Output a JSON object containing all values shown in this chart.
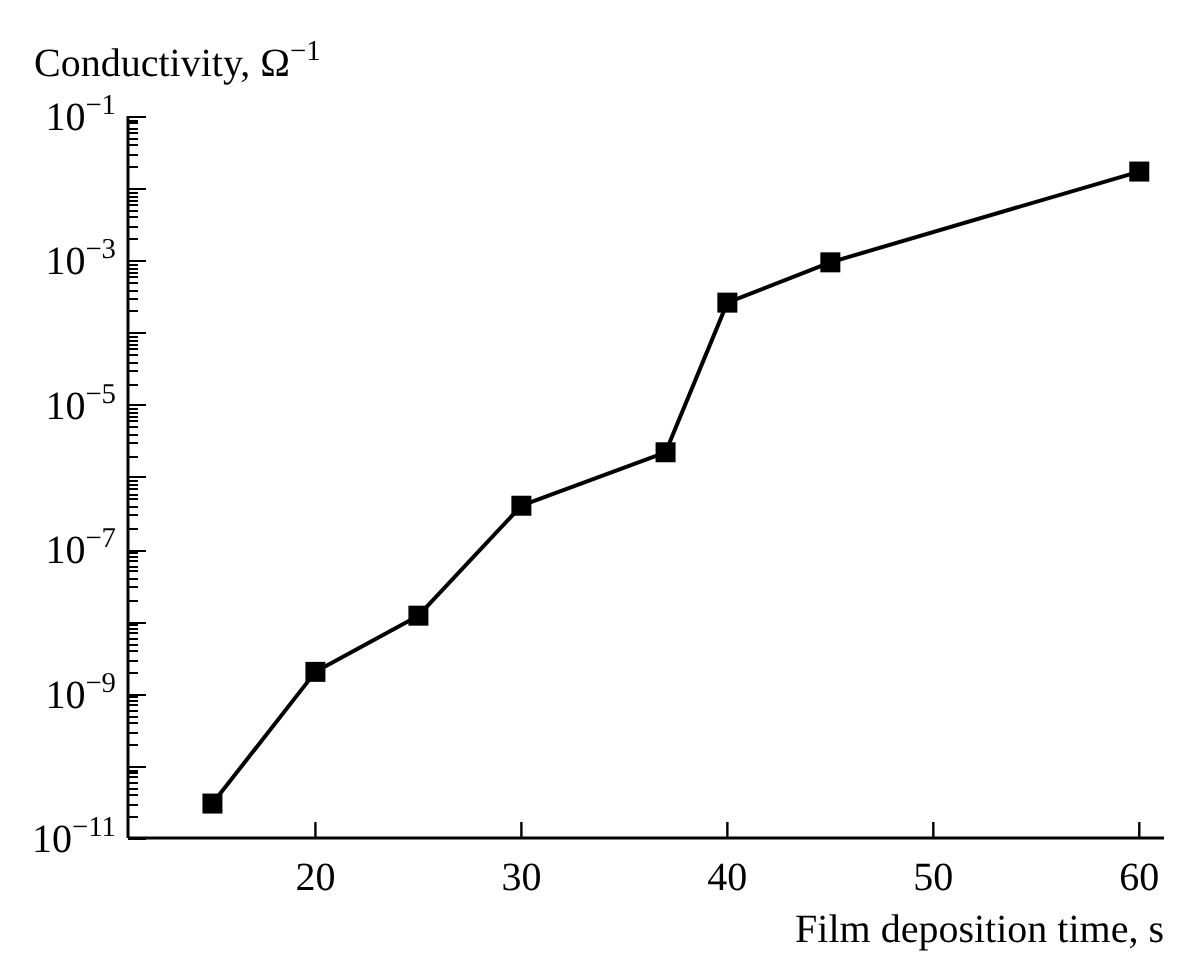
{
  "chart_data": {
    "type": "line",
    "xlabel": "Film deposition time, s",
    "ylabel": "Conductivity, Ω$^{−1}$",
    "x": [
      15,
      20,
      25,
      30,
      37,
      40,
      45,
      60
    ],
    "series": [
      {
        "color": "#000000",
        "values": [
          3e-11,
          2e-09,
          1.2e-08,
          4e-07,
          2.2e-06,
          0.00026,
          0.00094,
          0.017
        ]
      }
    ],
    "marker": "square",
    "line_style": "solid",
    "log": "y",
    "grid": false,
    "xlim": [
      10.9,
      61.2
    ],
    "xticks": [
      20,
      30,
      40,
      50,
      60
    ],
    "ylim": [
      1e-11,
      0.1
    ],
    "yticks": [
      {
        "value": 1e-11,
        "label": "10$^{−11}$"
      },
      {
        "value": 1e-10,
        "label": null
      },
      {
        "value": 1e-09,
        "label": "10$^{−9}$"
      },
      {
        "value": 1e-08,
        "label": null
      },
      {
        "value": 1e-07,
        "label": "10$^{−7}$"
      },
      {
        "value": 1e-06,
        "label": null
      },
      {
        "value": 1e-05,
        "label": "10$^{−5}$"
      },
      {
        "value": 0.0001,
        "label": null
      },
      {
        "value": 0.001,
        "label": "10$^{−3}$"
      },
      {
        "value": 0.01,
        "label": null
      },
      {
        "value": 0.1,
        "label": "10$^{−1}$"
      },
      {
        "value": 2e-11,
        "label": null
      },
      {
        "value": 3e-11,
        "label": null
      },
      {
        "value": 4e-11,
        "label": null
      },
      {
        "value": 5e-11,
        "label": null
      },
      {
        "value": 6e-11,
        "label": null
      },
      {
        "value": 7e-11,
        "label": null
      },
      {
        "value": 8e-11,
        "label": null
      },
      {
        "value": 9e-11,
        "label": null
      },
      {
        "value": 2e-10,
        "label": null
      },
      {
        "value": 3e-10,
        "label": null
      },
      {
        "value": 4e-10,
        "label": null
      },
      {
        "value": 5e-10,
        "label": null
      },
      {
        "value": 6e-10,
        "label": null
      },
      {
        "value": 7e-10,
        "label": null
      },
      {
        "value": 8e-10,
        "label": null
      },
      {
        "value": 9e-10,
        "label": null
      },
      {
        "value": 2e-09,
        "label": null
      },
      {
        "value": 3e-09,
        "label": null
      },
      {
        "value": 4e-09,
        "label": null
      },
      {
        "value": 5e-09,
        "label": null
      },
      {
        "value": 6e-09,
        "label": null
      },
      {
        "value": 7e-09,
        "label": null
      },
      {
        "value": 8e-09,
        "label": null
      },
      {
        "value": 9e-09,
        "label": null
      },
      {
        "value": 2e-08,
        "label": null
      },
      {
        "value": 3e-08,
        "label": null
      },
      {
        "value": 4e-08,
        "label": null
      },
      {
        "value": 5e-08,
        "label": null
      },
      {
        "value": 6e-08,
        "label": null
      },
      {
        "value": 7e-08,
        "label": null
      },
      {
        "value": 8e-08,
        "label": null
      },
      {
        "value": 9e-08,
        "label": null
      },
      {
        "value": 2e-07,
        "label": null
      },
      {
        "value": 3e-07,
        "label": null
      },
      {
        "value": 4e-07,
        "label": null
      },
      {
        "value": 5e-07,
        "label": null
      },
      {
        "value": 6e-07,
        "label": null
      },
      {
        "value": 7e-07,
        "label": null
      },
      {
        "value": 8e-07,
        "label": null
      },
      {
        "value": 9e-07,
        "label": null
      },
      {
        "value": 2e-06,
        "label": null
      },
      {
        "value": 3e-06,
        "label": null
      },
      {
        "value": 4e-06,
        "label": null
      },
      {
        "value": 5e-06,
        "label": null
      },
      {
        "value": 6e-06,
        "label": null
      },
      {
        "value": 7e-06,
        "label": null
      },
      {
        "value": 8e-06,
        "label": null
      },
      {
        "value": 9e-06,
        "label": null
      },
      {
        "value": 2e-05,
        "label": null
      },
      {
        "value": 3e-05,
        "label": null
      },
      {
        "value": 4e-05,
        "label": null
      },
      {
        "value": 5e-05,
        "label": null
      },
      {
        "value": 6e-05,
        "label": null
      },
      {
        "value": 7e-05,
        "label": null
      },
      {
        "value": 8e-05,
        "label": null
      },
      {
        "value": 9e-05,
        "label": null
      },
      {
        "value": 0.0002,
        "label": null
      },
      {
        "value": 0.0003,
        "label": null
      },
      {
        "value": 0.0004,
        "label": null
      },
      {
        "value": 0.0005,
        "label": null
      },
      {
        "value": 0.0006,
        "label": null
      },
      {
        "value": 0.0007,
        "label": null
      },
      {
        "value": 0.0008,
        "label": null
      },
      {
        "value": 0.0009,
        "label": null
      },
      {
        "value": 0.002,
        "label": null
      },
      {
        "value": 0.003,
        "label": null
      },
      {
        "value": 0.004,
        "label": null
      },
      {
        "value": 0.005,
        "label": null
      },
      {
        "value": 0.006,
        "label": null
      },
      {
        "value": 0.007,
        "label": null
      },
      {
        "value": 0.008,
        "label": null
      },
      {
        "value": 0.009,
        "label": null
      },
      {
        "value": 0.02,
        "label": null
      },
      {
        "value": 0.03,
        "label": null
      },
      {
        "value": 0.04,
        "label": null
      },
      {
        "value": 0.05,
        "label": null
      },
      {
        "value": 0.06,
        "label": null
      },
      {
        "value": 0.07,
        "label": null
      },
      {
        "value": 0.08,
        "label": null
      },
      {
        "value": 0.09,
        "label": null
      }
    ]
  }
}
